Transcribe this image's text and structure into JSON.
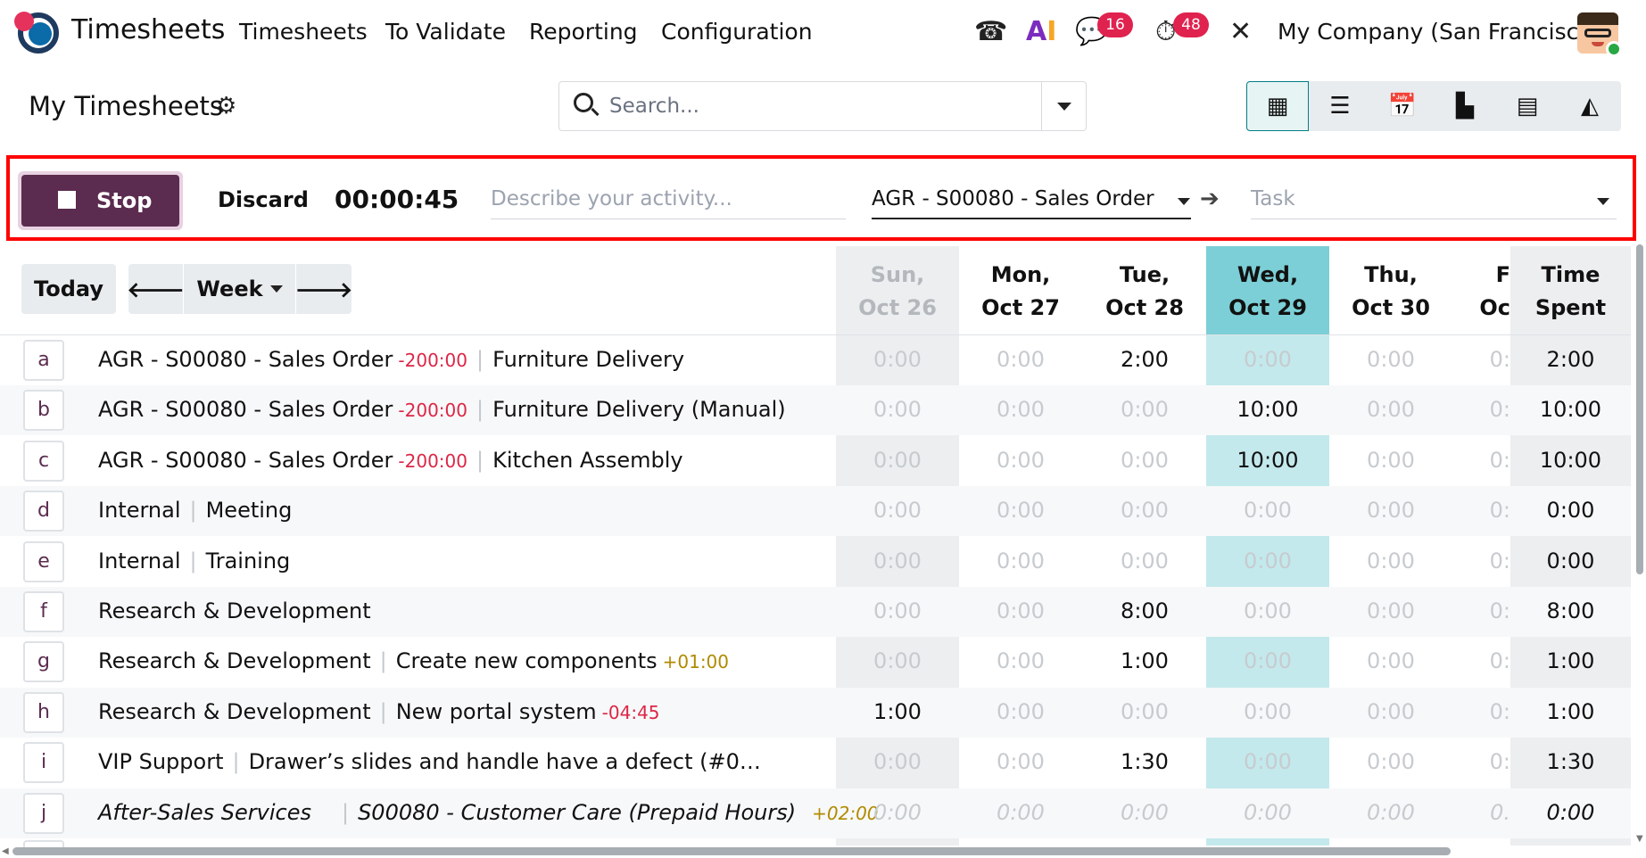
{
  "nav": {
    "app_title": "Timesheets",
    "menu": [
      "Timesheets",
      "To Validate",
      "Reporting",
      "Configuration"
    ],
    "chat_badge": "16",
    "activity_badge": "48",
    "company": "My Company (San Francisco)"
  },
  "control": {
    "page_title": "My Timesheets",
    "search_placeholder": "Search...",
    "views": [
      "grid-view-icon",
      "list-view-icon",
      "calendar-view-icon",
      "kanban-view-icon",
      "pivot-view-icon",
      "graph-view-icon"
    ]
  },
  "timer": {
    "stop_label": "Stop",
    "discard_label": "Discard",
    "elapsed": "00:00:45",
    "activity_placeholder": "Describe your activity...",
    "project_value": "AGR - S00080 - Sales Order",
    "task_placeholder": "Task"
  },
  "grid_nav": {
    "today_label": "Today",
    "range_label": "Week"
  },
  "columns": {
    "days": [
      {
        "l1": "Sun,",
        "l2": "Oct 26"
      },
      {
        "l1": "Mon,",
        "l2": "Oct 27"
      },
      {
        "l1": "Tue,",
        "l2": "Oct 28"
      },
      {
        "l1": "Wed,",
        "l2": "Oct 29"
      },
      {
        "l1": "Thu,",
        "l2": "Oct 30"
      },
      {
        "l1": "F",
        "l2": "Oc"
      }
    ],
    "total_l1": "Time",
    "total_l2": "Spent"
  },
  "rows": [
    {
      "key": "a",
      "project": "AGR - S00080 - Sales Order",
      "delta": "-200:00",
      "task": "Furniture Delivery",
      "cells": [
        "0:00",
        "0:00",
        "2:00",
        "0:00",
        "0:00",
        "0:"
      ],
      "total": "2:00"
    },
    {
      "key": "b",
      "project": "AGR - S00080 - Sales Order",
      "delta": "-200:00",
      "task": "Furniture Delivery (Manual)",
      "cells": [
        "0:00",
        "0:00",
        "0:00",
        "10:00",
        "0:00",
        "0:"
      ],
      "total": "10:00"
    },
    {
      "key": "c",
      "project": "AGR - S00080 - Sales Order",
      "delta": "-200:00",
      "task": "Kitchen Assembly",
      "cells": [
        "0:00",
        "0:00",
        "0:00",
        "10:00",
        "0:00",
        "0:"
      ],
      "total": "10:00"
    },
    {
      "key": "d",
      "project": "Internal",
      "task": "Meeting",
      "cells": [
        "0:00",
        "0:00",
        "0:00",
        "0:00",
        "0:00",
        "0:"
      ],
      "total": "0:00"
    },
    {
      "key": "e",
      "project": "Internal",
      "task": "Training",
      "cells": [
        "0:00",
        "0:00",
        "0:00",
        "0:00",
        "0:00",
        "0:"
      ],
      "total": "0:00"
    },
    {
      "key": "f",
      "project": "Research & Development",
      "cells": [
        "0:00",
        "0:00",
        "8:00",
        "0:00",
        "0:00",
        "0:"
      ],
      "total": "8:00"
    },
    {
      "key": "g",
      "project": "Research & Development",
      "task": "Create new components",
      "task_delta": "+01:00",
      "cells": [
        "0:00",
        "0:00",
        "1:00",
        "0:00",
        "0:00",
        "0:"
      ],
      "total": "1:00"
    },
    {
      "key": "h",
      "project": "Research & Development",
      "task": "New portal system",
      "task_delta": "-04:45",
      "cells": [
        "1:00",
        "0:00",
        "0:00",
        "0:00",
        "0:00",
        "0:"
      ],
      "total": "1:00"
    },
    {
      "key": "i",
      "project": "VIP Support",
      "task": "Drawer’s slides and handle have a defect (#0…",
      "cells": [
        "0:00",
        "0:00",
        "1:30",
        "0:00",
        "0:00",
        "0:"
      ],
      "total": "1:30"
    },
    {
      "key": "j",
      "project": "After-Sales Services",
      "task": "S00080 - Customer Care (Prepaid Hours)",
      "task_delta": "+02:00",
      "cells": [
        "0:00",
        "0:00",
        "0:00",
        "0:00",
        "0:00",
        "0."
      ],
      "total": "0:00"
    }
  ]
}
